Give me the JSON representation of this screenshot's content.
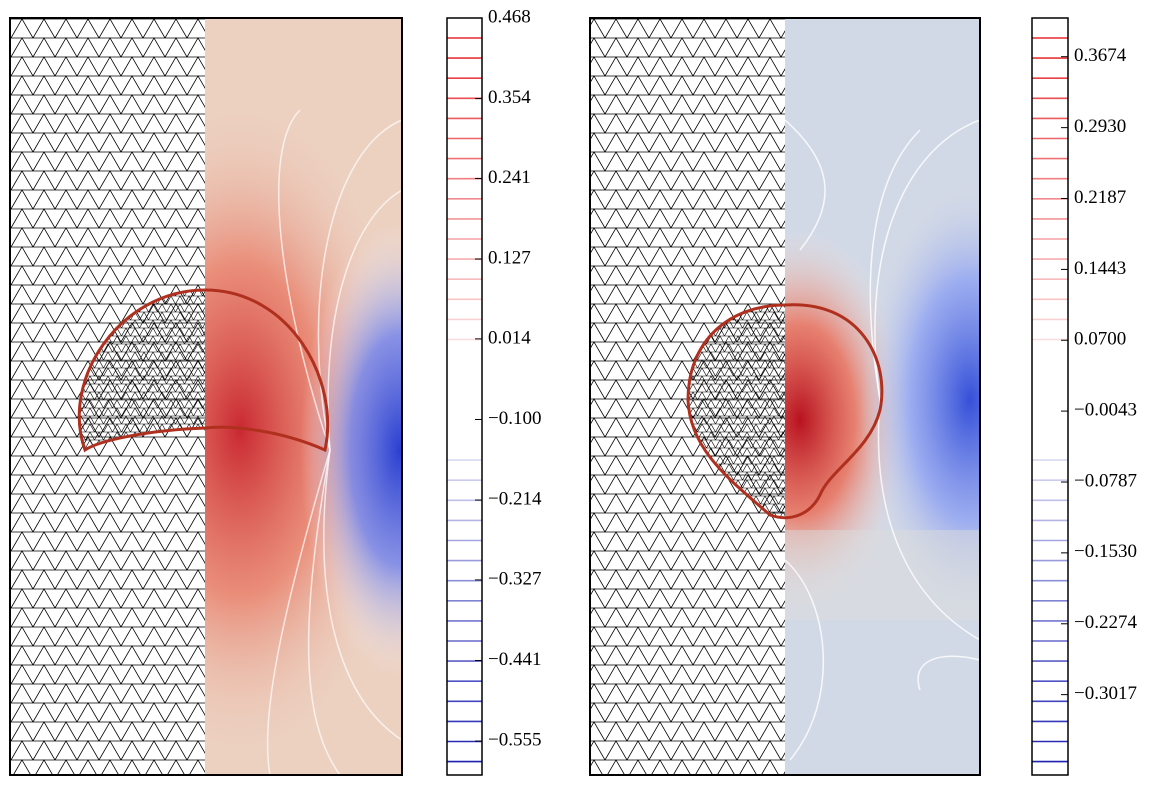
{
  "chart_data": [
    {
      "type": "contour",
      "ylim": [
        -0.603,
        0.468
      ],
      "yticks": [
        0.468,
        0.354,
        0.241,
        0.127,
        0.014,
        {
          "value": -0.1,
          "label": "−0.100"
        },
        {
          "value": -0.214,
          "label": "−0.214"
        },
        {
          "value": -0.327,
          "label": "−0.327"
        },
        {
          "value": -0.441,
          "label": "−0.441"
        },
        {
          "value": -0.555,
          "label": "−0.555"
        }
      ]
    },
    {
      "type": "contour",
      "ylim": [
        -0.386,
        0.408
      ],
      "yticks": [
        0.3674,
        {
          "value": 0.293,
          "label": "0.2930"
        },
        0.2187,
        0.1443,
        {
          "value": 0.07,
          "label": "0.0700"
        },
        {
          "value": -0.0043,
          "label": "−0.0043"
        },
        {
          "value": -0.0787,
          "label": "−0.0787"
        },
        {
          "value": -0.153,
          "label": "−0.1530"
        },
        {
          "value": -0.2274,
          "label": "−0.2274"
        },
        {
          "value": -0.3017,
          "label": "−0.3017"
        }
      ]
    }
  ]
}
